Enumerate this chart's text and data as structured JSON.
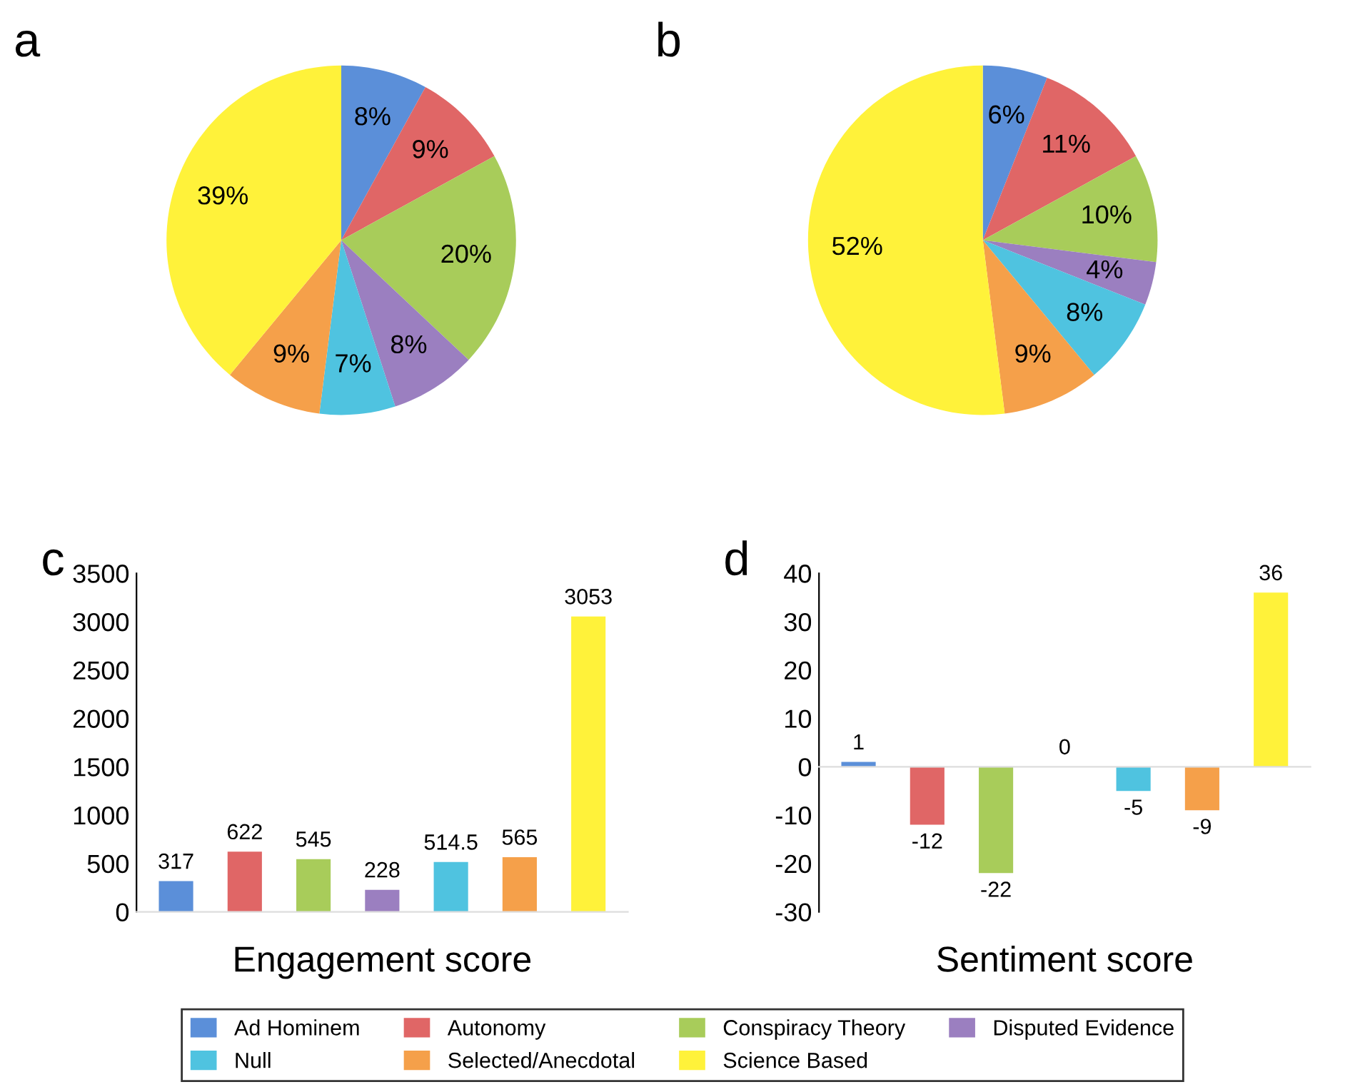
{
  "chart_data": [
    {
      "type": "pie",
      "title": "a",
      "categories": [
        "Ad Hominem",
        "Autonomy",
        "Conspiracy Theory",
        "Disputed Evidence",
        "Null",
        "Selected/Anecdotal",
        "Science Based"
      ],
      "values": [
        8,
        9,
        20,
        8,
        7,
        9,
        39
      ],
      "value_labels": [
        "8%",
        "9%",
        "20%",
        "8%",
        "7%",
        "9%",
        "39%"
      ],
      "colors": [
        "#5b8fd9",
        "#e06666",
        "#a8cc5a",
        "#9b7fc0",
        "#4fc3e0",
        "#f5a04a",
        "#fff23a"
      ],
      "legend": "bottom"
    },
    {
      "type": "pie",
      "title": "b",
      "categories": [
        null,
        null,
        null,
        null,
        null,
        null,
        null
      ],
      "values": [
        6,
        11,
        10,
        4,
        8,
        9,
        52
      ],
      "value_labels": [
        "6%",
        "11%",
        "10%",
        "4%",
        "8%",
        "9%",
        "52%"
      ],
      "colors": [
        "#5b8fd9",
        "#e06666",
        "#a8cc5a",
        "#9b7fc0",
        "#4fc3e0",
        "#f5a04a",
        "#fff23a"
      ]
    },
    {
      "type": "bar",
      "title": "c",
      "xlabel": "Engagement score",
      "categories": [
        null,
        null,
        null,
        null,
        null,
        null,
        null
      ],
      "values": [
        317,
        622,
        545,
        228,
        514.5,
        565,
        3053
      ],
      "colors": [
        "#5b8fd9",
        "#e06666",
        "#a8cc5a",
        "#9b7fc0",
        "#4fc3e0",
        "#f5a04a",
        "#fff23a"
      ],
      "ylim": [
        0,
        3500
      ],
      "yticks": [
        0,
        500,
        1000,
        1500,
        2000,
        2500,
        3000,
        3500
      ],
      "data_labels": true
    },
    {
      "type": "bar",
      "title": "d",
      "xlabel": "Sentiment score",
      "categories": [
        null,
        null,
        null,
        null,
        null,
        null,
        null
      ],
      "values": [
        1,
        -12,
        -22,
        0,
        -5,
        -9,
        36
      ],
      "colors": [
        "#5b8fd9",
        "#e06666",
        "#a8cc5a",
        "#9b7fc0",
        "#4fc3e0",
        "#f5a04a",
        "#fff23a"
      ],
      "ylim": [
        -30,
        40
      ],
      "yticks": [
        -30,
        -20,
        -10,
        0,
        10,
        20,
        30,
        40
      ],
      "data_labels": true
    }
  ]
}
